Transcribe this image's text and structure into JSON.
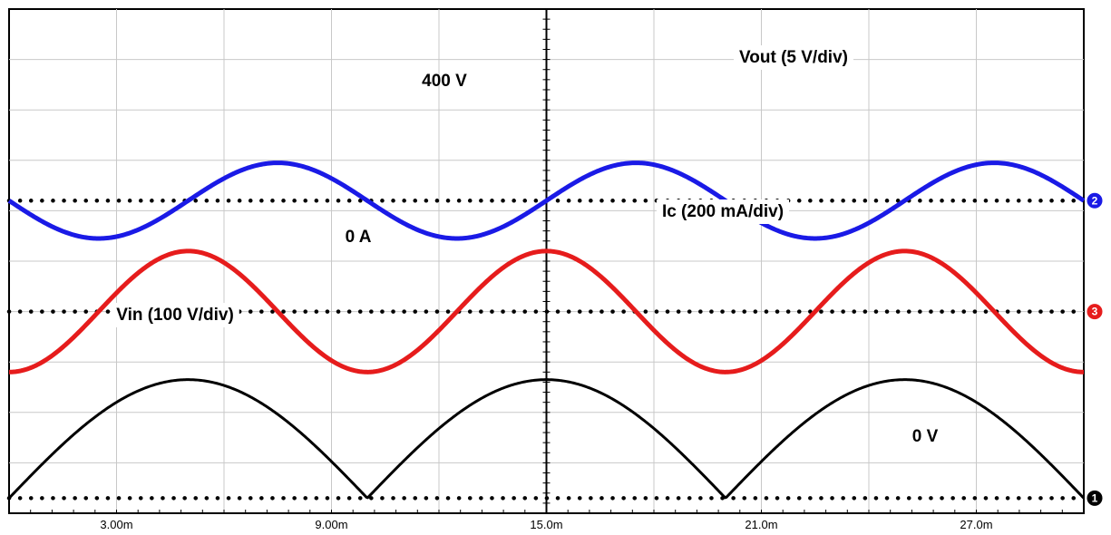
{
  "chart_data": {
    "type": "line",
    "grid": true,
    "x_unit": "s",
    "xlim": [
      0,
      0.03
    ],
    "x_ticks": [
      {
        "value": 0.003,
        "label": "3.00m"
      },
      {
        "value": 0.009,
        "label": "9.00m"
      },
      {
        "value": 0.015,
        "label": "15.0m"
      },
      {
        "value": 0.021,
        "label": "21.0m"
      },
      {
        "value": 0.027,
        "label": "27.0m"
      }
    ],
    "divisions": {
      "x": 10,
      "y": 10
    },
    "traces": [
      {
        "id": "vout",
        "label": "Vout (5 V/div)",
        "channel": "2",
        "color": "#1a1ae6",
        "waveform": "sine",
        "period_s": 0.01,
        "phase_s": 0.015,
        "amplitude_div": 0.75,
        "reference_div": 6.2,
        "reference_label": "400 V",
        "reference_label_pos_div": [
          7.55,
          6.6
        ]
      },
      {
        "id": "ic",
        "label": "Ic (200 mA/div)",
        "channel": "3",
        "color": "#e61c1c",
        "waveform": "cosine",
        "period_s": 0.01,
        "phase_s": 0.015,
        "amplitude_div": 1.2,
        "reference_div": 4.0,
        "reference_label": "0 A",
        "reference_label_pos_div": [
          6.4,
          4.25
        ]
      },
      {
        "id": "vin",
        "label": "Vin (100 V/div)",
        "channel": "1",
        "color": "#000000",
        "waveform": "rectified",
        "period_s": 0.01,
        "phase_s": 0.015,
        "amplitude_div": 2.35,
        "reference_div": 0.3,
        "reference_label": "0 V",
        "reference_label_pos_div": [
          17.2,
          0.55
        ]
      }
    ]
  },
  "labels": [
    {
      "text": "Vout (5 V/div)",
      "trace": "vout"
    },
    {
      "text": "Ic (200 mA/div)",
      "trace": "ic"
    },
    {
      "text": "Vin (100 V/div)",
      "trace": "vin"
    }
  ]
}
